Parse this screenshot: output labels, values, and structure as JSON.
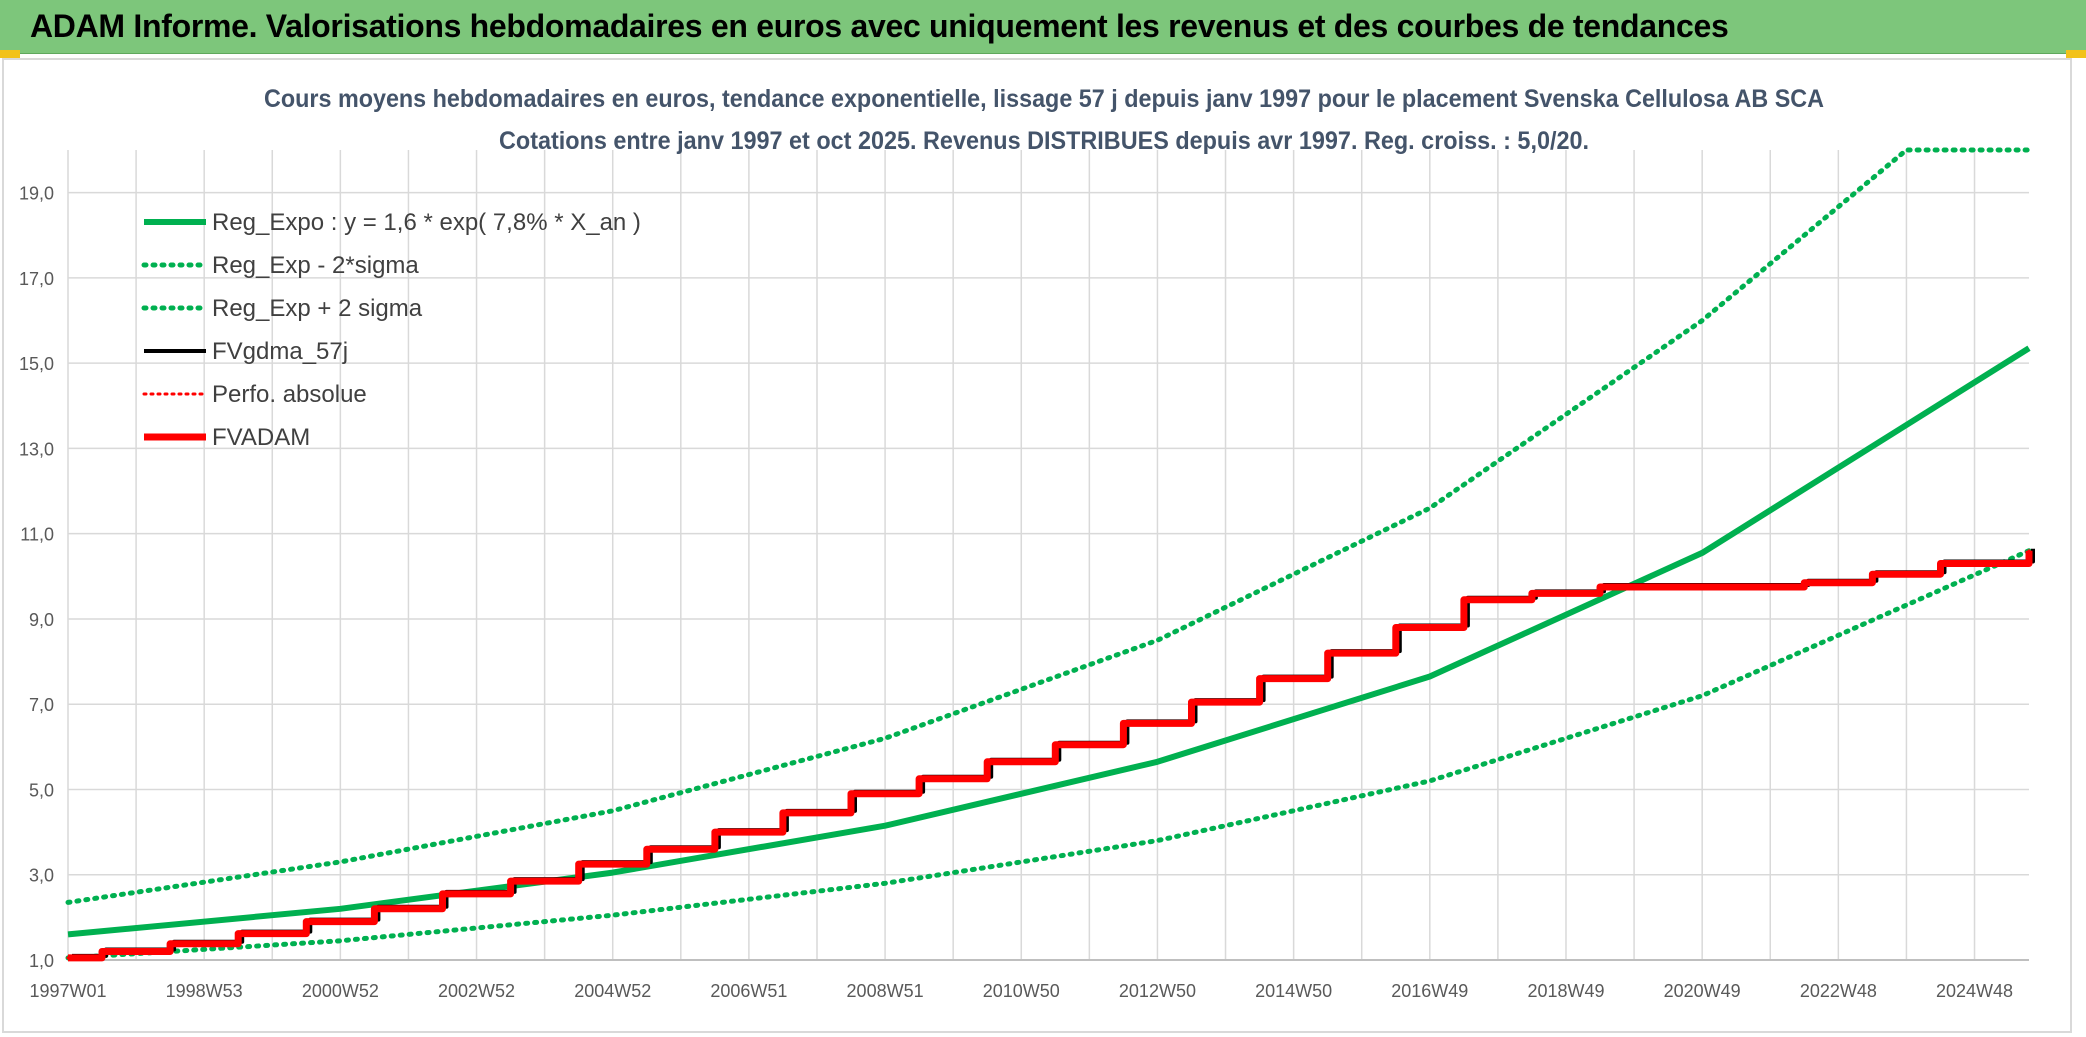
{
  "header": {
    "title": "ADAM Informe. Valorisations hebdomadaires en euros avec uniquement les revenus et des courbes de tendances"
  },
  "colors": {
    "header_bg": "#7dc67b",
    "green": "#00b050",
    "red": "#ff0000",
    "black": "#000000",
    "title_text": "#44546a",
    "grid": "#d9d9d9",
    "corner_accent": "#f2c21a"
  },
  "chart_data": {
    "type": "line",
    "title": "Cours moyens hebdomadaires en euros, tendance exponentielle, lissage 57 j depuis janv 1997 pour le placement Svenska Cellulosa AB SCA",
    "subtitle": "Cotations entre janv 1997 et oct 2025. Revenus DISTRIBUES depuis avr 1997. Reg. croiss. : 5,0/20.",
    "xlabel": "",
    "ylabel": "",
    "x_range_years": [
      1997.0,
      2025.8
    ],
    "ylim": [
      1.0,
      20.0
    ],
    "y_ticks": [
      "1,0",
      "3,0",
      "5,0",
      "7,0",
      "9,0",
      "11,0",
      "13,0",
      "15,0",
      "17,0",
      "19,0"
    ],
    "x_tick_labels": [
      "1997W01",
      "1998W53",
      "2000W52",
      "2002W52",
      "2004W52",
      "2006W51",
      "2008W51",
      "2010W50",
      "2012W50",
      "2014W50",
      "2016W49",
      "2018W49",
      "2020W49",
      "2022W48",
      "2024W48"
    ],
    "x_tick_years": [
      1997.0,
      1999.0,
      2001.0,
      2003.0,
      2005.0,
      2007.0,
      2009.0,
      2011.0,
      2013.0,
      2015.0,
      2017.0,
      2019.0,
      2021.0,
      2023.0,
      2025.0
    ],
    "grid": true,
    "legend_position": "top-left",
    "legend": [
      "Reg_Expo : y = 1,6 * exp( 7,8% *  X_an )",
      "Reg_Exp - 2*sigma",
      "Reg_Exp + 2 sigma",
      "FVgdma_57j",
      "Perfo. absolue",
      "FVADAM"
    ],
    "series": [
      {
        "name": "Reg_Expo : y = 1,6 * exp( 7,8% *  X_an )",
        "style": "solid",
        "color": "#00b050",
        "x": [
          1997.0,
          2001.0,
          2005.0,
          2009.0,
          2013.0,
          2017.0,
          2021.0,
          2025.8
        ],
        "y": [
          1.6,
          2.2,
          3.05,
          4.15,
          5.65,
          7.65,
          10.55,
          15.35
        ]
      },
      {
        "name": "Reg_Exp - 2*sigma",
        "style": "dotted",
        "color": "#00b050",
        "x": [
          1997.0,
          2001.0,
          2005.0,
          2009.0,
          2013.0,
          2017.0,
          2021.0,
          2025.8
        ],
        "y": [
          1.05,
          1.45,
          2.05,
          2.8,
          3.8,
          5.2,
          7.2,
          10.6
        ]
      },
      {
        "name": "Reg_Exp + 2 sigma",
        "style": "dotted",
        "color": "#00b050",
        "x": [
          1997.0,
          2001.0,
          2005.0,
          2009.0,
          2013.0,
          2017.0,
          2021.0,
          2024.0,
          2025.8
        ],
        "y": [
          2.35,
          3.3,
          4.5,
          6.2,
          8.5,
          11.6,
          16.0,
          20.0,
          20.0
        ]
      },
      {
        "name": "FVgdma_57j",
        "style": "solid",
        "color": "#000000",
        "x": [
          1997.0,
          1997.5,
          1998.5,
          1999.5,
          2000.5,
          2001.5,
          2002.5,
          2003.5,
          2004.5,
          2005.5,
          2006.5,
          2007.5,
          2008.5,
          2009.5,
          2010.5,
          2011.5,
          2012.5,
          2013.5,
          2014.5,
          2015.5,
          2016.5,
          2017.5,
          2018.5,
          2019.5,
          2021.0,
          2022.5,
          2023.5,
          2024.5,
          2025.8
        ],
        "y": [
          1.05,
          1.2,
          1.38,
          1.62,
          1.9,
          2.2,
          2.55,
          2.85,
          3.25,
          3.6,
          4.0,
          4.45,
          4.9,
          5.25,
          5.65,
          6.05,
          6.55,
          7.05,
          7.6,
          8.2,
          8.8,
          9.45,
          9.6,
          9.75,
          9.75,
          9.85,
          10.05,
          10.3,
          10.6
        ]
      },
      {
        "name": "Perfo. absolue",
        "style": "dotted",
        "color": "#ff0000",
        "x": [
          1997.0,
          1997.5,
          1998.5,
          1999.5,
          2000.5,
          2001.5,
          2002.5,
          2003.5,
          2004.5,
          2005.5,
          2006.5,
          2007.5,
          2008.5,
          2009.5,
          2010.5,
          2011.5,
          2012.5,
          2013.5,
          2014.5,
          2015.5,
          2016.5,
          2017.5,
          2018.5,
          2019.5,
          2021.0,
          2022.5,
          2023.5,
          2024.5,
          2025.8
        ],
        "y": [
          1.05,
          1.2,
          1.38,
          1.62,
          1.9,
          2.2,
          2.55,
          2.85,
          3.25,
          3.6,
          4.0,
          4.45,
          4.9,
          5.25,
          5.65,
          6.05,
          6.55,
          7.05,
          7.6,
          8.2,
          8.8,
          9.45,
          9.6,
          9.75,
          9.75,
          9.85,
          10.05,
          10.3,
          10.6
        ]
      },
      {
        "name": "FVADAM",
        "style": "solid",
        "color": "#ff0000",
        "x": [
          1997.0,
          1997.5,
          1998.5,
          1999.5,
          2000.5,
          2001.5,
          2002.5,
          2003.5,
          2004.5,
          2005.5,
          2006.5,
          2007.5,
          2008.5,
          2009.5,
          2010.5,
          2011.5,
          2012.5,
          2013.5,
          2014.5,
          2015.5,
          2016.5,
          2017.5,
          2018.5,
          2019.5,
          2021.0,
          2022.5,
          2023.5,
          2024.5,
          2025.8
        ],
        "y": [
          1.05,
          1.2,
          1.38,
          1.62,
          1.9,
          2.2,
          2.55,
          2.85,
          3.25,
          3.6,
          4.0,
          4.45,
          4.9,
          5.25,
          5.65,
          6.05,
          6.55,
          7.05,
          7.6,
          8.2,
          8.8,
          9.45,
          9.6,
          9.75,
          9.75,
          9.85,
          10.05,
          10.3,
          10.6
        ]
      }
    ]
  }
}
